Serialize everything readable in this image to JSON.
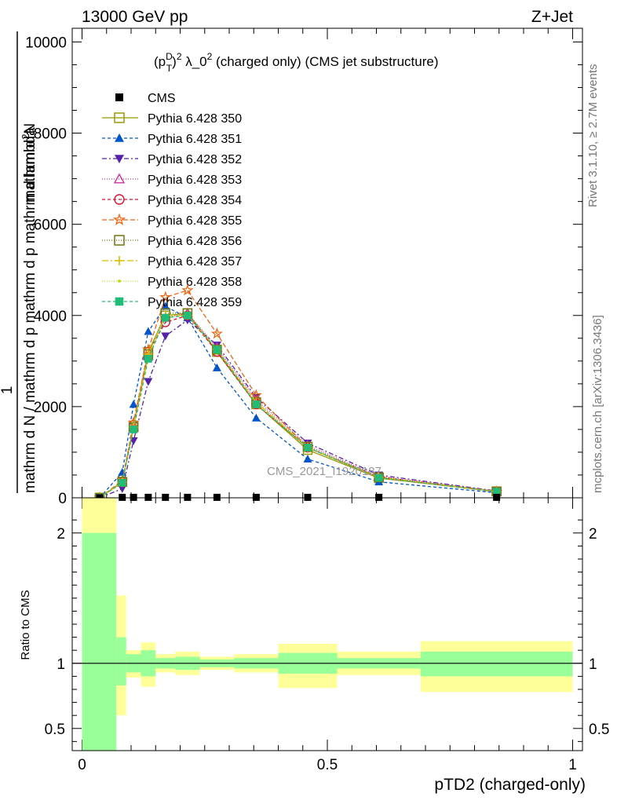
{
  "header": {
    "left": "13000 GeV pp",
    "right": "Z+Jet"
  },
  "plot_title": {
    "base": "(p",
    "sup": "D",
    "sub": "T",
    "rest": ")",
    "sup2": "2",
    "lambda": " λ_0",
    "sup3": "2",
    "tail": " (charged only) (CMS jet substructure)"
  },
  "side_labels": {
    "rivet": "Rivet 3.1.10, ≥ 2.7M events",
    "mcplots": "mcplots.cern.ch [arXiv:1306.3436]"
  },
  "watermark": "CMS_2021_I1920187",
  "ylabel_main": {
    "one": "1",
    "num": "mathrm d",
    "num_sup": "2",
    "num_end": "N",
    "den_a": "mathrm d",
    "den_b": "N / mathrm d p",
    "den_c": "mathrm d p",
    "den_d": "mathrm d lambda"
  },
  "ylabel_ratio": "Ratio to CMS",
  "xlabel": "pTD2 (charged-only)",
  "colors": {
    "band_inner": "#99ff99",
    "band_outer": "#ffff99"
  },
  "chart_data": {
    "type": "line",
    "xlim": [
      -0.02,
      1.02
    ],
    "ylim_main": [
      0,
      10300
    ],
    "ylim_ratio": [
      0.33,
      2.27
    ],
    "main_yticks": [
      {
        "v": 0,
        "label": "0"
      },
      {
        "v": 2000,
        "label": "2000"
      },
      {
        "v": 4000,
        "label": "4000"
      },
      {
        "v": 6000,
        "label": "6000"
      },
      {
        "v": 8000,
        "label": "8000"
      },
      {
        "v": 10000,
        "label": "10000"
      }
    ],
    "ratio_yticks": [
      {
        "v": 0.5,
        "label": "0.5"
      },
      {
        "v": 1,
        "label": "1"
      },
      {
        "v": 2,
        "label": "2"
      }
    ],
    "xticks": [
      {
        "v": 0,
        "label": "0"
      },
      {
        "v": 0.5,
        "label": "0.5"
      },
      {
        "v": 1,
        "label": "1"
      }
    ],
    "x": [
      0.036,
      0.082,
      0.105,
      0.135,
      0.17,
      0.215,
      0.275,
      0.355,
      0.46,
      0.605,
      0.845
    ],
    "cms": [
      0,
      10,
      10,
      10,
      10,
      10,
      10,
      10,
      10,
      10,
      10
    ],
    "series": [
      {
        "name": "Pythia 6.428 350",
        "color": "#999900",
        "marker": "square-open",
        "dash": "",
        "values": [
          0,
          350,
          1550,
          3200,
          4000,
          4050,
          3200,
          2050,
          1050,
          430,
          140
        ]
      },
      {
        "name": "Pythia 6.428 351",
        "color": "#0055cc",
        "marker": "triangle-filled",
        "dash": "4,3",
        "values": [
          0,
          560,
          2050,
          3650,
          4200,
          3950,
          2850,
          1750,
          850,
          350,
          110
        ]
      },
      {
        "name": "Pythia 6.428 352",
        "color": "#5522aa",
        "marker": "triangledown-filled",
        "dash": "6,3,2,3",
        "values": [
          0,
          200,
          1250,
          2550,
          3550,
          3900,
          3350,
          2200,
          1200,
          500,
          150
        ]
      },
      {
        "name": "Pythia 6.428 353",
        "color": "#cc3399",
        "marker": "triangle-open",
        "dash": "1,2",
        "values": [
          0,
          330,
          1550,
          3100,
          3950,
          4050,
          3300,
          2150,
          1150,
          470,
          145
        ]
      },
      {
        "name": "Pythia 6.428 354",
        "color": "#dd1133",
        "marker": "circle-open",
        "dash": "4,3",
        "values": [
          0,
          340,
          1600,
          3200,
          3850,
          4000,
          3200,
          2050,
          1100,
          460,
          140
        ]
      },
      {
        "name": "Pythia 6.428 355",
        "color": "#ee6611",
        "marker": "star-open",
        "dash": "6,3",
        "values": [
          0,
          380,
          1650,
          3250,
          4400,
          4550,
          3600,
          2250,
          1100,
          440,
          130
        ]
      },
      {
        "name": "Pythia 6.428 356",
        "color": "#777711",
        "marker": "square-open",
        "dash": "1,2",
        "values": [
          0,
          350,
          1550,
          3150,
          4050,
          4050,
          3250,
          2100,
          1120,
          450,
          140
        ]
      },
      {
        "name": "Pythia 6.428 357",
        "color": "#ddbb00",
        "marker": "cross",
        "dash": "8,3,2,3",
        "values": [
          0,
          340,
          1550,
          3150,
          4000,
          4000,
          3250,
          2100,
          1100,
          450,
          140
        ]
      },
      {
        "name": "Pythia 6.428 358",
        "color": "#bbdd22",
        "marker": "dot",
        "dash": "1,2",
        "values": [
          0,
          340,
          1550,
          3100,
          4000,
          4000,
          3250,
          2050,
          1100,
          450,
          140
        ]
      },
      {
        "name": "Pythia 6.428 359",
        "color": "#22bb77",
        "marker": "square-filled",
        "dash": "4,3",
        "values": [
          0,
          330,
          1500,
          3050,
          3950,
          4000,
          3250,
          2050,
          1100,
          440,
          135
        ]
      }
    ],
    "ratio_bands": [
      {
        "x0": 0.0,
        "x1": 0.07,
        "inner": [
          0.33,
          2.0
        ],
        "outer": [
          0.33,
          2.27
        ]
      },
      {
        "x0": 0.07,
        "x1": 0.09,
        "inner": [
          0.83,
          1.2
        ],
        "outer": [
          0.6,
          1.52
        ]
      },
      {
        "x0": 0.09,
        "x1": 0.12,
        "inner": [
          0.93,
          1.07
        ],
        "outer": [
          0.89,
          1.1
        ]
      },
      {
        "x0": 0.12,
        "x1": 0.15,
        "inner": [
          0.9,
          1.1
        ],
        "outer": [
          0.82,
          1.16
        ]
      },
      {
        "x0": 0.15,
        "x1": 0.19,
        "inner": [
          0.96,
          1.04
        ],
        "outer": [
          0.93,
          1.07
        ]
      },
      {
        "x0": 0.19,
        "x1": 0.24,
        "inner": [
          0.95,
          1.05
        ],
        "outer": [
          0.91,
          1.09
        ]
      },
      {
        "x0": 0.24,
        "x1": 0.31,
        "inner": [
          0.97,
          1.03
        ],
        "outer": [
          0.95,
          1.05
        ]
      },
      {
        "x0": 0.31,
        "x1": 0.4,
        "inner": [
          0.96,
          1.04
        ],
        "outer": [
          0.93,
          1.07
        ]
      },
      {
        "x0": 0.4,
        "x1": 0.52,
        "inner": [
          0.92,
          1.08
        ],
        "outer": [
          0.81,
          1.15
        ]
      },
      {
        "x0": 0.52,
        "x1": 0.69,
        "inner": [
          0.96,
          1.04
        ],
        "outer": [
          0.91,
          1.09
        ]
      },
      {
        "x0": 0.69,
        "x1": 1.0,
        "inner": [
          0.9,
          1.09
        ],
        "outer": [
          0.78,
          1.17
        ]
      }
    ]
  }
}
